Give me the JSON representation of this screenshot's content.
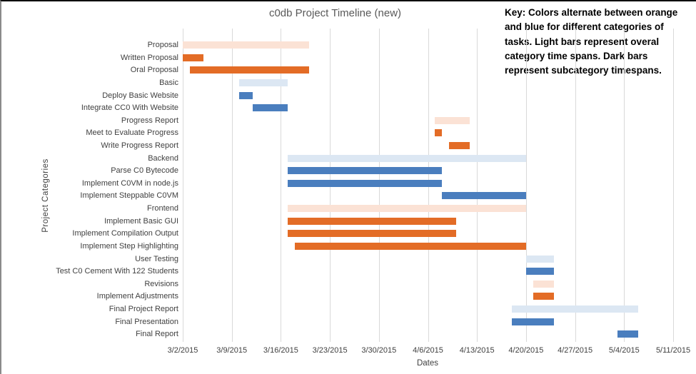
{
  "key_note": "Key: Colors alternate between orange and blue for different categories of tasks. Light bars represent overal category time spans. Dark bars represent subcategory timespans.",
  "chart_data": {
    "type": "bar",
    "subtype": "gantt",
    "title": "c0db Project Timeline (new)",
    "xlabel": "Dates",
    "ylabel": "Project Categories",
    "x_ticks": [
      "3/2/2015",
      "3/9/2015",
      "3/16/2015",
      "3/23/2015",
      "3/30/2015",
      "4/6/2015",
      "4/13/2015",
      "4/20/2015",
      "4/27/2015",
      "5/4/2015",
      "5/11/2015"
    ],
    "x_range": [
      "3/2/2015",
      "5/11/2015"
    ],
    "grid": "vertical-weekly",
    "legend_position": "none",
    "colors": {
      "light_orange": "#FBE2D5",
      "dark_orange": "#E36C26",
      "light_blue": "#DCE7F3",
      "dark_blue": "#4A7EBE",
      "gridline": "#D9D9D9",
      "text": "#404040"
    },
    "tasks": [
      {
        "label": "Proposal",
        "start": "3/2/2015",
        "end": "3/20/2015",
        "color": "light_orange"
      },
      {
        "label": "Written Proposal",
        "start": "3/2/2015",
        "end": "3/5/2015",
        "color": "dark_orange"
      },
      {
        "label": "Oral Proposal",
        "start": "3/3/2015",
        "end": "3/20/2015",
        "color": "dark_orange"
      },
      {
        "label": "Basic",
        "start": "3/10/2015",
        "end": "3/17/2015",
        "color": "light_blue"
      },
      {
        "label": "Deploy Basic Website",
        "start": "3/10/2015",
        "end": "3/12/2015",
        "color": "dark_blue"
      },
      {
        "label": "Integrate CC0 With Website",
        "start": "3/12/2015",
        "end": "3/17/2015",
        "color": "dark_blue"
      },
      {
        "label": "Progress Report",
        "start": "4/7/2015",
        "end": "4/12/2015",
        "color": "light_orange"
      },
      {
        "label": "Meet to Evaluate Progress",
        "start": "4/7/2015",
        "end": "4/8/2015",
        "color": "dark_orange"
      },
      {
        "label": "Write Progress Report",
        "start": "4/9/2015",
        "end": "4/12/2015",
        "color": "dark_orange"
      },
      {
        "label": "Backend",
        "start": "3/17/2015",
        "end": "4/20/2015",
        "color": "light_blue"
      },
      {
        "label": "Parse C0 Bytecode",
        "start": "3/17/2015",
        "end": "4/8/2015",
        "color": "dark_blue"
      },
      {
        "label": "Implement C0VM in node.js",
        "start": "3/17/2015",
        "end": "4/8/2015",
        "color": "dark_blue"
      },
      {
        "label": "Implement Steppable C0VM",
        "start": "4/8/2015",
        "end": "4/20/2015",
        "color": "dark_blue"
      },
      {
        "label": "Frontend",
        "start": "3/17/2015",
        "end": "4/20/2015",
        "color": "light_orange"
      },
      {
        "label": "Implement Basic GUI",
        "start": "3/17/2015",
        "end": "4/10/2015",
        "color": "dark_orange"
      },
      {
        "label": "Implement Compilation Output",
        "start": "3/17/2015",
        "end": "4/10/2015",
        "color": "dark_orange"
      },
      {
        "label": "Implement Step Highlighting",
        "start": "3/18/2015",
        "end": "4/20/2015",
        "color": "dark_orange"
      },
      {
        "label": "User Testing",
        "start": "4/20/2015",
        "end": "4/24/2015",
        "color": "light_blue"
      },
      {
        "label": "Test C0 Cement With 122 Students",
        "start": "4/20/2015",
        "end": "4/24/2015",
        "color": "dark_blue"
      },
      {
        "label": "Revisions",
        "start": "4/21/2015",
        "end": "4/24/2015",
        "color": "light_orange"
      },
      {
        "label": "Implement Adjustments",
        "start": "4/21/2015",
        "end": "4/24/2015",
        "color": "dark_orange"
      },
      {
        "label": "Final Project Report",
        "start": "4/18/2015",
        "end": "5/6/2015",
        "color": "light_blue"
      },
      {
        "label": "Final Presentation",
        "start": "4/18/2015",
        "end": "4/24/2015",
        "color": "dark_blue"
      },
      {
        "label": "Final Report",
        "start": "5/3/2015",
        "end": "5/6/2015",
        "color": "dark_blue"
      }
    ]
  }
}
